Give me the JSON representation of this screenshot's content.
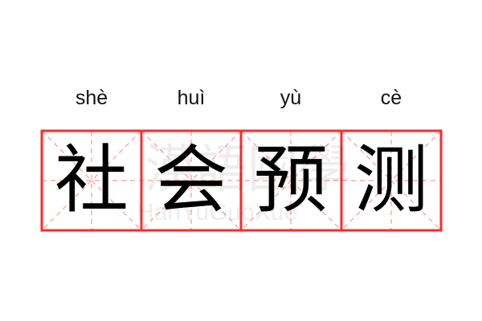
{
  "entries": [
    {
      "pinyin": "shè",
      "char": "社"
    },
    {
      "pinyin": "huì",
      "char": "会"
    },
    {
      "pinyin": "yù",
      "char": "预"
    },
    {
      "pinyin": "cè",
      "char": "测"
    }
  ],
  "watermark": {
    "cn": "漢語國學",
    "en": "HanYuGuoXue"
  },
  "colors": {
    "grid_border": "#ff2a2a",
    "grid_guides": "#ffaaaa"
  }
}
